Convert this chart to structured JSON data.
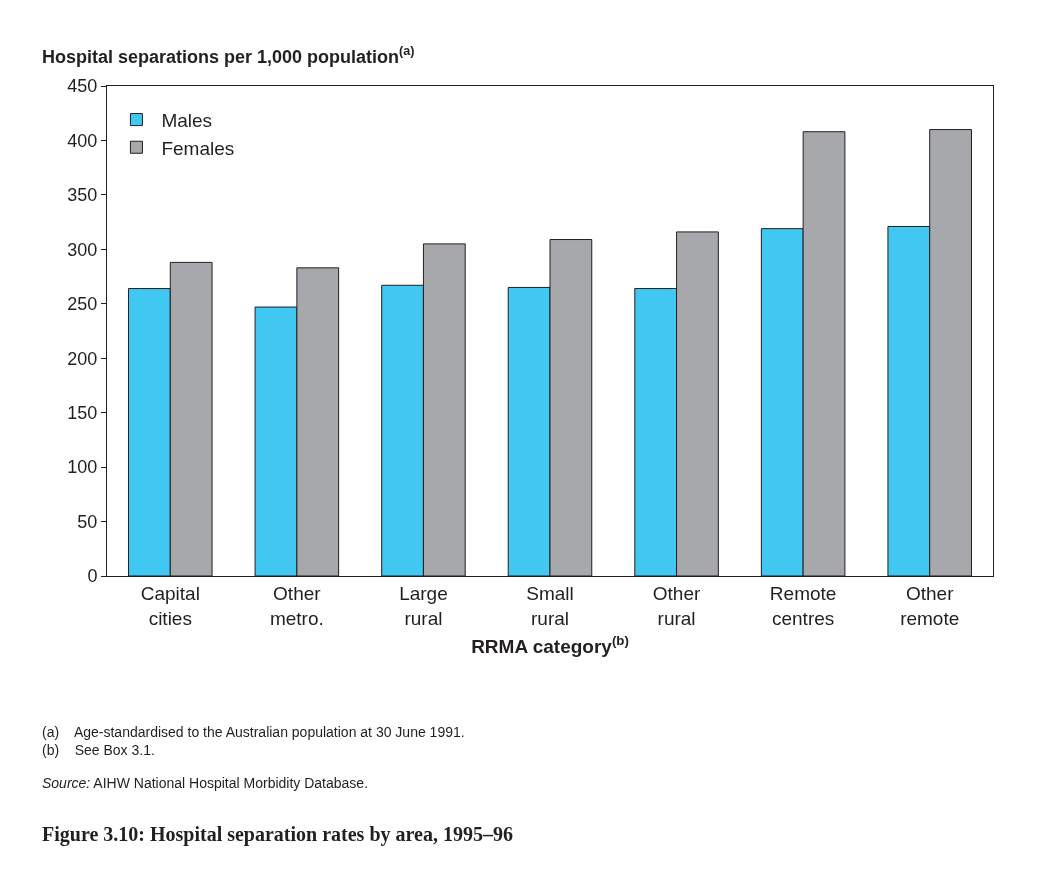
{
  "chart_data": {
    "type": "bar",
    "title": "Figure 3.10: Hospital separation rates by area, 1995–96",
    "ylabel": "Hospital separations per 1,000 population$^{(a)}$",
    "xlabel": "RRMA category$^{(b)}$",
    "categories": [
      "Capital cities",
      "Other metro.",
      "Large rural",
      "Small rural",
      "Other rural",
      "Remote centres",
      "Other remote"
    ],
    "series": [
      {
        "name": "Males",
        "color": "#40c8f2",
        "values": [
          264,
          247,
          267,
          265,
          264,
          319,
          321
        ]
      },
      {
        "name": "Females",
        "color": "#a7a8ab",
        "values": [
          288,
          283,
          305,
          309,
          316,
          408,
          410
        ]
      }
    ],
    "ylim": [
      0,
      450
    ],
    "yticks": [
      0,
      50,
      100,
      150,
      200,
      250,
      300,
      350,
      400,
      450
    ],
    "legend": "top left",
    "annotations": [
      "(a)    Age-standardised to the Australian population at 30 June 1991.",
      "(b)    See Box 3.1.",
      "Source: AIHW National Hospital Morbidity Database."
    ]
  }
}
